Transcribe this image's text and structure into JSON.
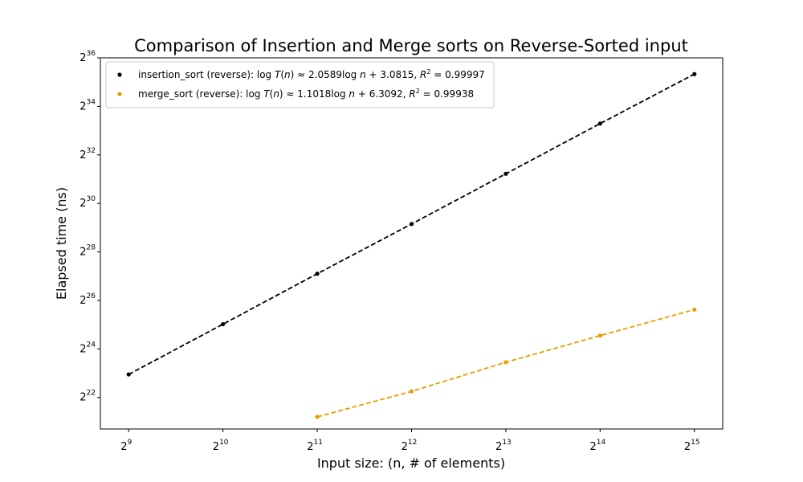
{
  "chart_data": {
    "type": "scatter",
    "title": "Comparison of Insertion and Merge sorts on Reverse-Sorted input",
    "xlabel": "Input size: (n, # of elements)",
    "ylabel": "Elapsed time (ns)",
    "x_scale": "log2",
    "y_scale": "log2",
    "x_tick_base": "2",
    "y_tick_base": "2",
    "x_tick_exponents": [
      "9",
      "10",
      "11",
      "12",
      "13",
      "14",
      "15"
    ],
    "y_tick_exponents": [
      "22",
      "24",
      "26",
      "28",
      "30",
      "32",
      "34",
      "36"
    ],
    "xlim_log2": [
      8.7,
      15.3
    ],
    "ylim_log2": [
      20.7,
      36.0
    ],
    "grid": false,
    "legend_position": "top-left",
    "series": [
      {
        "name": "insertion_sort (reverse)",
        "color": "#000000",
        "x": [
          512,
          1024,
          2048,
          4096,
          8192,
          16384,
          32768
        ],
        "y_log2": [
          22.95,
          25.02,
          27.1,
          29.15,
          31.22,
          33.29,
          35.33
        ],
        "fit": {
          "slope": "2.0589",
          "intercept": "3.0815",
          "r2": "0.99997"
        }
      },
      {
        "name": "merge_sort (reverse)",
        "color": "#e69f00",
        "x": [
          2048,
          4096,
          8192,
          16384,
          32768
        ],
        "y_log2": [
          21.2,
          22.25,
          23.45,
          24.55,
          25.62
        ],
        "fit": {
          "slope": "1.1018",
          "intercept": "6.3092",
          "r2": "0.99938"
        }
      }
    ]
  }
}
